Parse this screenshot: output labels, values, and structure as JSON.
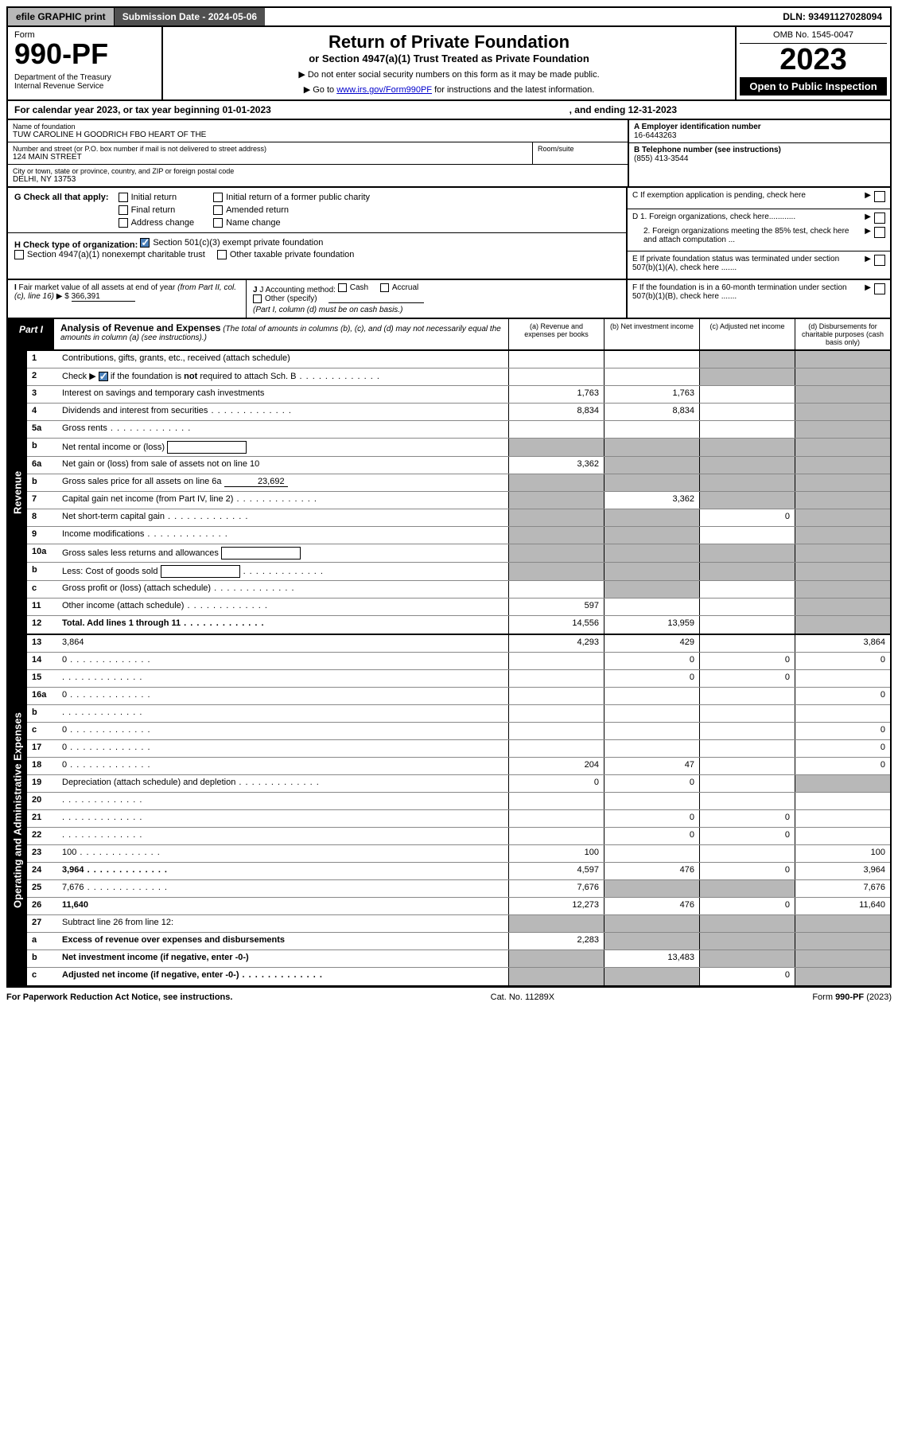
{
  "top": {
    "efile": "efile GRAPHIC print",
    "submission": "Submission Date - 2024-05-06",
    "dln": "DLN: 93491127028094"
  },
  "header": {
    "form_label": "Form",
    "form_no": "990-PF",
    "dept": "Department of the Treasury\nInternal Revenue Service",
    "title": "Return of Private Foundation",
    "subtitle": "or Section 4947(a)(1) Trust Treated as Private Foundation",
    "inst1": "▶ Do not enter social security numbers on this form as it may be made public.",
    "inst2_pre": "▶ Go to ",
    "inst2_link": "www.irs.gov/Form990PF",
    "inst2_post": " for instructions and the latest information.",
    "omb": "OMB No. 1545-0047",
    "year": "2023",
    "inspect": "Open to Public Inspection"
  },
  "cal": {
    "text1": "For calendar year 2023, or tax year beginning 01-01-2023",
    "text2": ", and ending 12-31-2023"
  },
  "info": {
    "name_label": "Name of foundation",
    "name": "TUW CAROLINE H GOODRICH FBO HEART OF THE",
    "addr_label": "Number and street (or P.O. box number if mail is not delivered to street address)",
    "addr": "124 MAIN STREET",
    "room_label": "Room/suite",
    "city_label": "City or town, state or province, country, and ZIP or foreign postal code",
    "city": "DELHI, NY  13753",
    "a_label": "A Employer identification number",
    "a_val": "16-6443263",
    "b_label": "B Telephone number (see instructions)",
    "b_val": "(855) 413-3544",
    "c_label": "C If exemption application is pending, check here",
    "d1_label": "D 1. Foreign organizations, check here............",
    "d2_label": "2. Foreign organizations meeting the 85% test, check here and attach computation ...",
    "e_label": "E  If private foundation status was terminated under section 507(b)(1)(A), check here .......",
    "f_label": "F  If the foundation is in a 60-month termination under section 507(b)(1)(B), check here ......."
  },
  "g": {
    "label": "G Check all that apply:",
    "opts": [
      "Initial return",
      "Final return",
      "Address change",
      "Initial return of a former public charity",
      "Amended return",
      "Name change"
    ]
  },
  "h": {
    "label": "H Check type of organization:",
    "opt1": "Section 501(c)(3) exempt private foundation",
    "opt2": "Section 4947(a)(1) nonexempt charitable trust",
    "opt3": "Other taxable private foundation"
  },
  "i": {
    "label": "I Fair market value of all assets at end of year (from Part II, col. (c), line 16) ▶ $",
    "val": "366,391"
  },
  "j": {
    "label": "J Accounting method:",
    "cash": "Cash",
    "accrual": "Accrual",
    "other": "Other (specify)",
    "note": "(Part I, column (d) must be on cash basis.)"
  },
  "part1": {
    "tab": "Part I",
    "title": "Analysis of Revenue and Expenses",
    "note": "(The total of amounts in columns (b), (c), and (d) may not necessarily equal the amounts in column (a) (see instructions).)",
    "cols": {
      "a": "(a)   Revenue and expenses per books",
      "b": "(b)    Net investment income",
      "c": "(c)    Adjusted net income",
      "d": "(d)   Disbursements for charitable purposes (cash basis only)"
    }
  },
  "sections": {
    "revenue": "Revenue",
    "operating": "Operating and Administrative Expenses"
  },
  "lines": [
    {
      "n": "1",
      "d": "Contributions, gifts, grants, etc., received (attach schedule)",
      "a": "",
      "b": "",
      "c_grey": true,
      "d_grey": true
    },
    {
      "n": "2",
      "d": "Check ▶ [✓] if the foundation is not required to attach Sch. B",
      "dots": true,
      "a": "",
      "b": "",
      "c_grey": true,
      "d_grey": true,
      "has_check": true
    },
    {
      "n": "3",
      "d": "Interest on savings and temporary cash investments",
      "a": "1,763",
      "b": "1,763",
      "c": "",
      "d_grey": true
    },
    {
      "n": "4",
      "d": "Dividends and interest from securities",
      "dots": true,
      "a": "8,834",
      "b": "8,834",
      "c": "",
      "d_grey": true
    },
    {
      "n": "5a",
      "d": "Gross rents",
      "dots": true,
      "a": "",
      "b": "",
      "c": "",
      "d_grey": true
    },
    {
      "n": "b",
      "d": "Net rental income or (loss)",
      "inline": true,
      "a_grey": true,
      "b_grey": true,
      "c_grey": true,
      "d_grey": true
    },
    {
      "n": "6a",
      "d": "Net gain or (loss) from sale of assets not on line 10",
      "a": "3,362",
      "b_grey": true,
      "c_grey": true,
      "d_grey": true
    },
    {
      "n": "b",
      "d": "Gross sales price for all assets on line 6a",
      "inline_val": "23,692",
      "a_grey": true,
      "b_grey": true,
      "c_grey": true,
      "d_grey": true
    },
    {
      "n": "7",
      "d": "Capital gain net income (from Part IV, line 2)",
      "dots": true,
      "a_grey": true,
      "b": "3,362",
      "c_grey": true,
      "d_grey": true
    },
    {
      "n": "8",
      "d": "Net short-term capital gain",
      "dots": true,
      "a_grey": true,
      "b_grey": true,
      "c": "0",
      "d_grey": true
    },
    {
      "n": "9",
      "d": "Income modifications",
      "dots": true,
      "a_grey": true,
      "b_grey": true,
      "c": "",
      "d_grey": true
    },
    {
      "n": "10a",
      "d": "Gross sales less returns and allowances",
      "inline": true,
      "a_grey": true,
      "b_grey": true,
      "c_grey": true,
      "d_grey": true
    },
    {
      "n": "b",
      "d": "Less: Cost of goods sold",
      "dots": true,
      "inline": true,
      "a_grey": true,
      "b_grey": true,
      "c_grey": true,
      "d_grey": true
    },
    {
      "n": "c",
      "d": "Gross profit or (loss) (attach schedule)",
      "dots": true,
      "a": "",
      "b_grey": true,
      "c": "",
      "d_grey": true
    },
    {
      "n": "11",
      "d": "Other income (attach schedule)",
      "dots": true,
      "a": "597",
      "b": "",
      "c": "",
      "d_grey": true
    },
    {
      "n": "12",
      "d": "Total. Add lines 1 through 11",
      "dots": true,
      "bold": true,
      "a": "14,556",
      "b": "13,959",
      "c": "",
      "d_grey": true
    }
  ],
  "exp_lines": [
    {
      "n": "13",
      "d": "3,864",
      "a": "4,293",
      "b": "429",
      "c": ""
    },
    {
      "n": "14",
      "d": "0",
      "dots": true,
      "a": "",
      "b": "0",
      "c": "0"
    },
    {
      "n": "15",
      "d": "",
      "dots": true,
      "a": "",
      "b": "0",
      "c": "0"
    },
    {
      "n": "16a",
      "d": "0",
      "dots": true,
      "a": "",
      "b": "",
      "c": ""
    },
    {
      "n": "b",
      "d": "",
      "dots": true,
      "a": "",
      "b": "",
      "c": ""
    },
    {
      "n": "c",
      "d": "0",
      "dots": true,
      "a": "",
      "b": "",
      "c": ""
    },
    {
      "n": "17",
      "d": "0",
      "dots": true,
      "a": "",
      "b": "",
      "c": ""
    },
    {
      "n": "18",
      "d": "0",
      "dots": true,
      "a": "204",
      "b": "47",
      "c": ""
    },
    {
      "n": "19",
      "d": "Depreciation (attach schedule) and depletion",
      "dots": true,
      "a": "0",
      "b": "0",
      "c": "",
      "d_grey": true
    },
    {
      "n": "20",
      "d": "",
      "dots": true,
      "a": "",
      "b": "",
      "c": ""
    },
    {
      "n": "21",
      "d": "",
      "dots": true,
      "a": "",
      "b": "0",
      "c": "0"
    },
    {
      "n": "22",
      "d": "",
      "dots": true,
      "a": "",
      "b": "0",
      "c": "0"
    },
    {
      "n": "23",
      "d": "100",
      "dots": true,
      "a": "100",
      "b": "",
      "c": ""
    },
    {
      "n": "24",
      "d": "3,964",
      "dots": true,
      "bold": true,
      "a": "4,597",
      "b": "476",
      "c": "0"
    },
    {
      "n": "25",
      "d": "7,676",
      "dots": true,
      "a": "7,676",
      "b_grey": true,
      "c_grey": true
    },
    {
      "n": "26",
      "d": "11,640",
      "bold": true,
      "a": "12,273",
      "b": "476",
      "c": "0"
    },
    {
      "n": "27",
      "d": "Subtract line 26 from line 12:",
      "a_grey": true,
      "b_grey": true,
      "c_grey": true,
      "d_grey": true
    },
    {
      "n": "a",
      "d": "Excess of revenue over expenses and disbursements",
      "bold": true,
      "a": "2,283",
      "b_grey": true,
      "c_grey": true,
      "d_grey": true
    },
    {
      "n": "b",
      "d": "Net investment income (if negative, enter -0-)",
      "bold": true,
      "a_grey": true,
      "b": "13,483",
      "c_grey": true,
      "d_grey": true
    },
    {
      "n": "c",
      "d": "Adjusted net income (if negative, enter -0-)",
      "dots": true,
      "bold": true,
      "a_grey": true,
      "b_grey": true,
      "c": "0",
      "d_grey": true
    }
  ],
  "footer": {
    "left": "For Paperwork Reduction Act Notice, see instructions.",
    "mid": "Cat. No. 11289X",
    "right": "Form 990-PF (2023)"
  }
}
